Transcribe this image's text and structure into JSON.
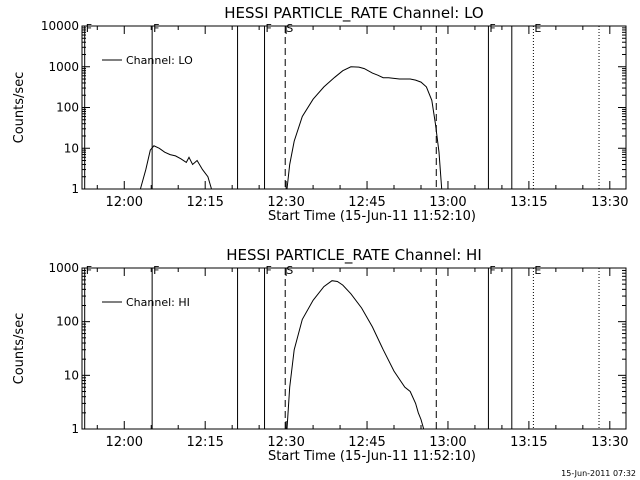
{
  "footer": {
    "timestamp": "15-Jun-2011 07:32"
  },
  "chart_data": [
    {
      "type": "line",
      "title": "HESSI PARTICLE_RATE Channel: LO",
      "xlabel": "Start Time (15-Jun-11 11:52:10)",
      "ylabel": "Counts/sec",
      "yscale": "log",
      "ylim": [
        1,
        10000
      ],
      "xlim": [
        "11:52:10",
        "13:33:00"
      ],
      "x_ticks": [
        "12:00",
        "12:15",
        "12:30",
        "12:45",
        "13:00",
        "13:15",
        "13:30"
      ],
      "y_ticks": [
        "1",
        "10",
        "100",
        "1000",
        "10000"
      ],
      "legend": {
        "position": "top-left",
        "entries": [
          "Channel: LO"
        ]
      },
      "grid": false,
      "series": [
        {
          "name": "Channel: LO",
          "segments": [
            {
              "x": [
                "12:03:00",
                "12:04:00",
                "12:04:50",
                "12:05:30",
                "12:06:30",
                "12:07:30",
                "12:08:30",
                "12:09:30",
                "12:10:30",
                "12:11:30",
                "12:12:00",
                "12:12:40",
                "12:13:30",
                "12:14:30",
                "12:15:30",
                "12:16:10"
              ],
              "y": [
                1,
                3,
                9,
                11.5,
                10,
                8,
                7,
                6.5,
                5.5,
                4.5,
                6,
                4,
                5,
                3,
                2,
                1
              ]
            },
            {
              "x": [
                "12:30:10",
                "12:30:40",
                "12:31:30",
                "12:33:00",
                "12:35:00",
                "12:37:00",
                "12:39:00",
                "12:40:30",
                "12:42:00",
                "12:43:30",
                "12:44:30",
                "12:46:00",
                "12:47:00",
                "12:48:00",
                "12:49:00",
                "12:51:00",
                "12:53:00",
                "12:54:00",
                "12:55:00",
                "12:56:00",
                "12:57:00",
                "12:57:40",
                "12:58:20",
                "12:58:50"
              ],
              "y": [
                1,
                4,
                15,
                60,
                160,
                320,
                550,
                800,
                1000,
                980,
                900,
                700,
                620,
                540,
                540,
                500,
                500,
                470,
                420,
                320,
                150,
                40,
                8,
                1
              ]
            }
          ]
        }
      ],
      "annotations": [
        {
          "label": "F",
          "x": "11:52:40",
          "style": "solid",
          "show_label": true
        },
        {
          "label": "F",
          "x": "12:05:10",
          "style": "solid",
          "show_label": true
        },
        {
          "label": "",
          "x": "12:21:00",
          "style": "solid",
          "show_label": false
        },
        {
          "label": "F",
          "x": "12:26:00",
          "style": "solid",
          "show_label": true
        },
        {
          "label": "S",
          "x": "12:29:50",
          "style": "dashed",
          "show_label": true
        },
        {
          "label": "",
          "x": "12:57:50",
          "style": "dashed",
          "show_label": false
        },
        {
          "label": "F",
          "x": "13:07:30",
          "style": "solid",
          "show_label": true
        },
        {
          "label": "",
          "x": "13:11:50",
          "style": "solid",
          "show_label": false
        },
        {
          "label": "E",
          "x": "13:15:50",
          "style": "dotted",
          "show_label": true
        },
        {
          "label": "",
          "x": "13:28:00",
          "style": "dotted",
          "show_label": false
        }
      ]
    },
    {
      "type": "line",
      "title": "HESSI PARTICLE_RATE Channel: HI",
      "xlabel": "Start Time (15-Jun-11 11:52:10)",
      "ylabel": "Counts/sec",
      "yscale": "log",
      "ylim": [
        1,
        1000
      ],
      "xlim": [
        "11:52:10",
        "13:33:00"
      ],
      "x_ticks": [
        "12:00",
        "12:15",
        "12:30",
        "12:45",
        "13:00",
        "13:15",
        "13:30"
      ],
      "y_ticks": [
        "1",
        "10",
        "100",
        "1000"
      ],
      "legend": {
        "position": "top-left",
        "entries": [
          "Channel: HI"
        ]
      },
      "grid": false,
      "series": [
        {
          "name": "Channel: HI",
          "segments": [
            {
              "x": [
                "12:30:10",
                "12:30:40",
                "12:31:30",
                "12:33:00",
                "12:35:00",
                "12:37:00",
                "12:38:30",
                "12:39:30",
                "12:40:30",
                "12:42:00",
                "12:44:00",
                "12:46:00",
                "12:48:00",
                "12:50:00",
                "12:52:00",
                "12:53:00",
                "12:54:00",
                "12:54:30",
                "12:55:00",
                "12:55:30"
              ],
              "y": [
                1,
                6,
                30,
                110,
                250,
                450,
                580,
                560,
                480,
                330,
                180,
                80,
                30,
                12,
                6,
                5,
                3,
                2,
                1.5,
                1
              ]
            }
          ]
        }
      ],
      "annotations": [
        {
          "label": "F",
          "x": "11:52:40",
          "style": "solid",
          "show_label": true
        },
        {
          "label": "F",
          "x": "12:05:10",
          "style": "solid",
          "show_label": true
        },
        {
          "label": "",
          "x": "12:21:00",
          "style": "solid",
          "show_label": false
        },
        {
          "label": "F",
          "x": "12:26:00",
          "style": "solid",
          "show_label": true
        },
        {
          "label": "S",
          "x": "12:29:50",
          "style": "dashed",
          "show_label": true
        },
        {
          "label": "",
          "x": "12:57:50",
          "style": "dashed",
          "show_label": false
        },
        {
          "label": "F",
          "x": "13:07:30",
          "style": "solid",
          "show_label": true
        },
        {
          "label": "",
          "x": "13:11:50",
          "style": "solid",
          "show_label": false
        },
        {
          "label": "E",
          "x": "13:15:50",
          "style": "dotted",
          "show_label": true
        },
        {
          "label": "",
          "x": "13:28:00",
          "style": "dotted",
          "show_label": false
        }
      ]
    }
  ]
}
